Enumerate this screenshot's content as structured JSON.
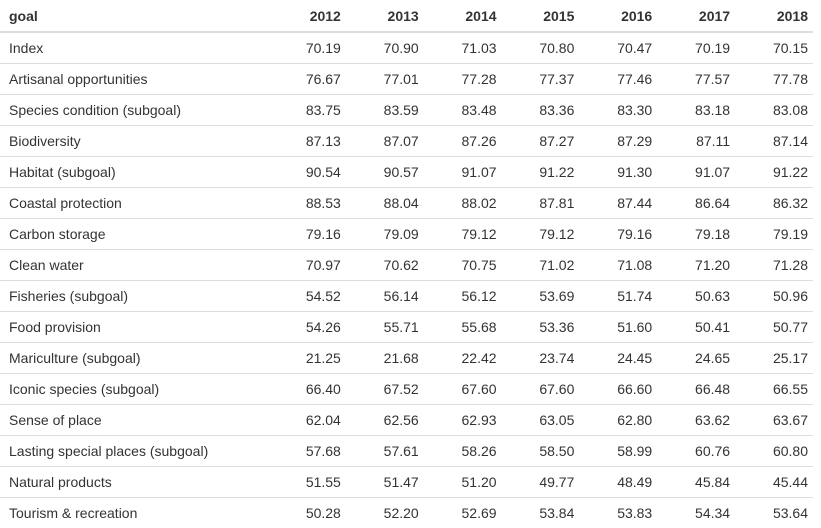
{
  "table": {
    "columns": [
      "goal",
      "2012",
      "2013",
      "2014",
      "2015",
      "2016",
      "2017",
      "2018"
    ],
    "rows": [
      [
        "Index",
        "70.19",
        "70.90",
        "71.03",
        "70.80",
        "70.47",
        "70.19",
        "70.15"
      ],
      [
        "Artisanal opportunities",
        "76.67",
        "77.01",
        "77.28",
        "77.37",
        "77.46",
        "77.57",
        "77.78"
      ],
      [
        "Species condition (subgoal)",
        "83.75",
        "83.59",
        "83.48",
        "83.36",
        "83.30",
        "83.18",
        "83.08"
      ],
      [
        "Biodiversity",
        "87.13",
        "87.07",
        "87.26",
        "87.27",
        "87.29",
        "87.11",
        "87.14"
      ],
      [
        "Habitat (subgoal)",
        "90.54",
        "90.57",
        "91.07",
        "91.22",
        "91.30",
        "91.07",
        "91.22"
      ],
      [
        "Coastal protection",
        "88.53",
        "88.04",
        "88.02",
        "87.81",
        "87.44",
        "86.64",
        "86.32"
      ],
      [
        "Carbon storage",
        "79.16",
        "79.09",
        "79.12",
        "79.12",
        "79.16",
        "79.18",
        "79.19"
      ],
      [
        "Clean water",
        "70.97",
        "70.62",
        "70.75",
        "71.02",
        "71.08",
        "71.20",
        "71.28"
      ],
      [
        "Fisheries (subgoal)",
        "54.52",
        "56.14",
        "56.12",
        "53.69",
        "51.74",
        "50.63",
        "50.96"
      ],
      [
        "Food provision",
        "54.26",
        "55.71",
        "55.68",
        "53.36",
        "51.60",
        "50.41",
        "50.77"
      ],
      [
        "Mariculture (subgoal)",
        "21.25",
        "21.68",
        "22.42",
        "23.74",
        "24.45",
        "24.65",
        "25.17"
      ],
      [
        "Iconic species (subgoal)",
        "66.40",
        "67.52",
        "67.60",
        "67.60",
        "66.60",
        "66.48",
        "66.55"
      ],
      [
        "Sense of place",
        "62.04",
        "62.56",
        "62.93",
        "63.05",
        "62.80",
        "63.62",
        "63.67"
      ],
      [
        "Lasting special places (subgoal)",
        "57.68",
        "57.61",
        "58.26",
        "58.50",
        "58.99",
        "60.76",
        "60.80"
      ],
      [
        "Natural products",
        "51.55",
        "51.47",
        "51.20",
        "49.77",
        "48.49",
        "45.84",
        "45.44"
      ],
      [
        "Tourism & recreation",
        "50.28",
        "52.20",
        "52.69",
        "53.84",
        "53.83",
        "54.34",
        "53.64"
      ]
    ]
  }
}
